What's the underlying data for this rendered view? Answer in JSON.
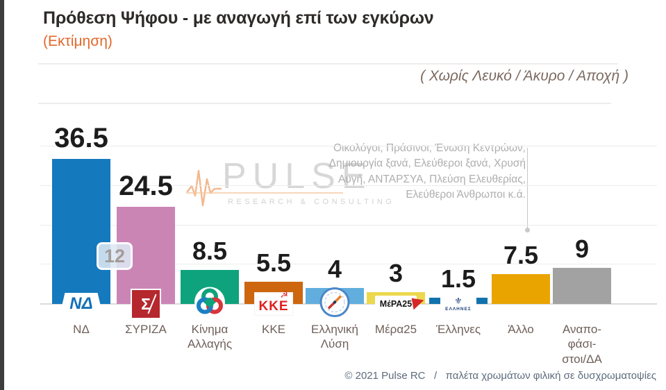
{
  "header": {
    "title": "Πρόθεση Ψήφου - με αναγωγή επί των εγκύρων",
    "subtitle": "(Εκτίμηση)",
    "note": "( Χωρίς Λευκό / Άκυρο / Αποχή )"
  },
  "watermark": {
    "brand": "PULSE",
    "tagline": "RESEARCH & CONSULTING"
  },
  "annotation": {
    "lines": [
      "Οικολόγοι, Πράσινοι, Ένωση Κεντρώων,",
      "Δημιουργία ξανά, Ελεύθεροι ξανά, Χρυσή",
      "Αυγή, ΑΝΤΑΡΣΥΑ, Πλεύση Ελευθερίας,",
      "Ελεύθεροι Άνθρωποι  κ.ά."
    ]
  },
  "gap_badge": "12",
  "footer": "© 2021 Pulse RC   /   παλέτα χρωμάτων φιλική σε δυσχρωματοψίες",
  "chart_data": {
    "type": "bar",
    "title": "Πρόθεση Ψήφου - με αναγωγή επί των εγκύρων",
    "subtitle": "(Εκτίμηση)",
    "categories": [
      "ΝΔ",
      "ΣΥΡΙΖΑ",
      "Κίνημα Αλλαγής",
      "ΚΚΕ",
      "Ελληνική Λύση",
      "Μέρα25",
      "Έλληνες",
      "Άλλο",
      "Αναποφάσιστοι/ΔΑ"
    ],
    "values": [
      36.5,
      24.5,
      8.5,
      5.5,
      4,
      3,
      1.5,
      7.5,
      9
    ],
    "bar_colors": [
      "#1579bd",
      "#cb85b5",
      "#0ea37c",
      "#cd660e",
      "#61aede",
      "#ecd84d",
      "#1173ad",
      "#e9a400",
      "#a2a2a2"
    ],
    "ylim": [
      0,
      40
    ],
    "gridline_step": 10,
    "grid": true,
    "legend": "none",
    "value_labels": true,
    "nd_syriza_gap": 12,
    "parties": [
      {
        "slug": "nd",
        "name": "ΝΔ",
        "label_lines": [
          "ΝΔ"
        ],
        "value": 36.5,
        "value_label": "36.5",
        "color": "#1579bd",
        "logo": "nd",
        "logo_text": "ΝΔ"
      },
      {
        "slug": "syriza",
        "name": "ΣΥΡΙΖΑ",
        "label_lines": [
          "ΣΥΡΙΖΑ"
        ],
        "value": 24.5,
        "value_label": "24.5",
        "color": "#cb85b5",
        "logo": "syriza",
        "logo_text": "Σ"
      },
      {
        "slug": "kinima-allagis",
        "name": "Κίνημα Αλλαγής",
        "label_lines": [
          "Κίνημα",
          "Αλλαγής"
        ],
        "value": 8.5,
        "value_label": "8.5",
        "color": "#0ea37c",
        "logo": "kinal",
        "logo_text": ""
      },
      {
        "slug": "kke",
        "name": "ΚΚΕ",
        "label_lines": [
          "ΚΚΕ"
        ],
        "value": 5.5,
        "value_label": "5.5",
        "color": "#cd660e",
        "logo": "kke",
        "logo_text": "ΚΚΕ"
      },
      {
        "slug": "elliniki-lysi",
        "name": "Ελληνική Λύση",
        "label_lines": [
          "Ελληνική",
          "Λύση"
        ],
        "value": 4,
        "value_label": "4",
        "color": "#61aede",
        "logo": "compass",
        "logo_text": ""
      },
      {
        "slug": "mera25",
        "name": "Μέρα25",
        "label_lines": [
          "Μέρα25"
        ],
        "value": 3,
        "value_label": "3",
        "color": "#ecd84d",
        "logo": "mera",
        "logo_text": "ΜέΡΑ25"
      },
      {
        "slug": "ellines",
        "name": "Έλληνες",
        "label_lines": [
          "Έλληνες"
        ],
        "value": 1.5,
        "value_label": "1.5",
        "color": "#1173ad",
        "logo": "ellines",
        "logo_text": "ΕΛΛΗΝΕΣ"
      },
      {
        "slug": "allo",
        "name": "Άλλο",
        "label_lines": [
          "Άλλο"
        ],
        "value": 7.5,
        "value_label": "7.5",
        "color": "#e9a400",
        "logo": null,
        "logo_text": ""
      },
      {
        "slug": "anapofasistoi",
        "name": "Αναποφάσιστοι/ΔΑ",
        "label_lines": [
          "Αναπο-",
          "φάσι-",
          "στοι/ΔΑ"
        ],
        "value": 9,
        "value_label": "9",
        "color": "#a2a2a2",
        "logo": null,
        "logo_text": ""
      }
    ]
  }
}
